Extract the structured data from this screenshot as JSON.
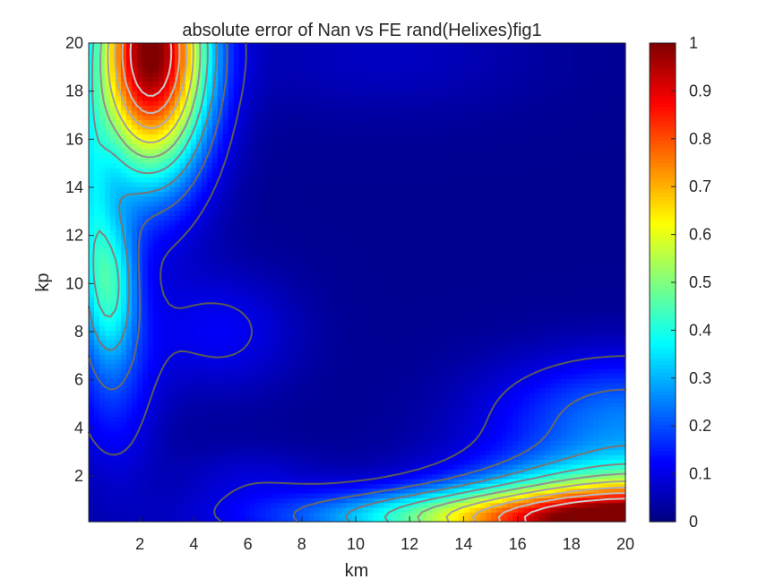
{
  "chart_data": {
    "type": "heatmap",
    "title": "absolute error of Nan vs FE rand(Helixes)fig1",
    "xlabel": "km",
    "ylabel": "kp",
    "xlim": [
      0.1,
      20
    ],
    "ylim": [
      0.1,
      20
    ],
    "x_ticks": [
      2,
      4,
      6,
      8,
      10,
      12,
      14,
      16,
      18,
      20
    ],
    "y_ticks": [
      2,
      4,
      6,
      8,
      10,
      12,
      14,
      16,
      18,
      20
    ],
    "colorbar": {
      "colormap": "jet",
      "limits": [
        0,
        1
      ],
      "ticks": [
        0,
        0.1,
        0.2,
        0.3,
        0.4,
        0.5,
        0.6,
        0.7,
        0.8,
        0.9,
        1
      ],
      "tick_labels": [
        "0",
        "0.1",
        "0.2",
        "0.3",
        "0.4",
        "0.5",
        "0.6",
        "0.7",
        "0.8",
        "0.9",
        "1"
      ]
    },
    "contour_levels": [
      0.1,
      0.2,
      0.3,
      0.4,
      0.5,
      0.6,
      0.7,
      0.8,
      0.9
    ],
    "peaks": [
      {
        "km": 2.4,
        "kp": 19.6,
        "value": 1.0,
        "sx": 1.5,
        "sy": 3.6
      },
      {
        "km": 20.8,
        "kp": 0.0,
        "value": 0.9,
        "sx": 4.6,
        "sy": 1.6
      },
      {
        "km": 0.9,
        "kp": 10.1,
        "value": 0.32,
        "sx": 0.7,
        "sy": 2.2
      },
      {
        "km": 0.15,
        "kp": 13.5,
        "value": 0.2,
        "sx": 0.5,
        "sy": 3.0
      },
      {
        "km": 14.5,
        "kp": 0.3,
        "value": 0.35,
        "sx": 5.5,
        "sy": 0.8
      },
      {
        "km": 20.0,
        "kp": 4.5,
        "value": 0.22,
        "sx": 3.5,
        "sy": 1.8
      },
      {
        "km": 6.0,
        "kp": 2.0,
        "value": 0.06,
        "sx": 2.0,
        "sy": 0.9
      },
      {
        "km": 5.0,
        "kp": 8.0,
        "value": 0.1,
        "sx": 2.0,
        "sy": 1.8
      },
      {
        "km": 1.0,
        "kp": 6.0,
        "value": 0.14,
        "sx": 1.2,
        "sy": 3.0
      },
      {
        "km": 11.0,
        "kp": 19.5,
        "value": 0.05,
        "sx": 4.0,
        "sy": 1.8
      }
    ]
  }
}
